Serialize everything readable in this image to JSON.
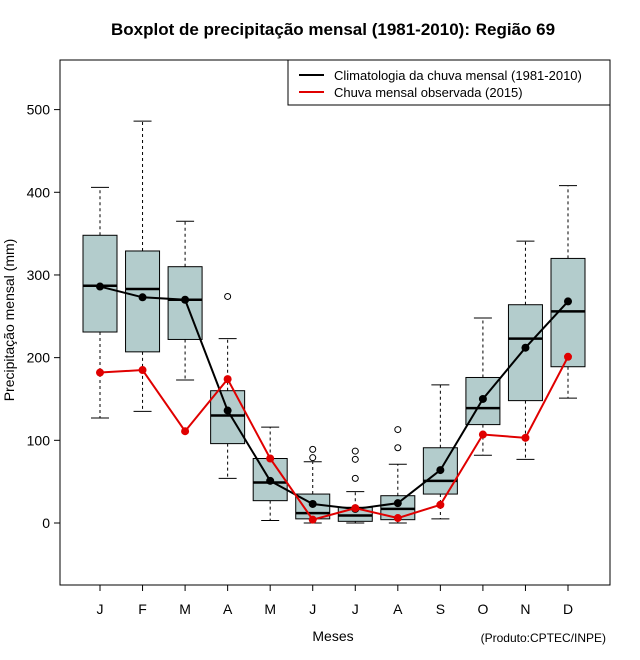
{
  "chart_data": {
    "type": "boxplot",
    "title": "Boxplot de precipitação mensal (1981-2010): Região 69",
    "xlabel": "Meses",
    "ylabel": "Precipitação mensal (mm)",
    "credit": "(Produto:CPTEC/INPE)",
    "ylim": [
      -75,
      560
    ],
    "yticks": [
      0,
      100,
      200,
      300,
      400,
      500
    ],
    "categories": [
      "J",
      "F",
      "M",
      "A",
      "M",
      "J",
      "J",
      "A",
      "S",
      "O",
      "N",
      "D"
    ],
    "boxes": [
      {
        "low": 127,
        "q1": 231,
        "median": 287,
        "q3": 348,
        "high": 406,
        "outliers": []
      },
      {
        "low": 135,
        "q1": 207,
        "median": 283,
        "q3": 329,
        "high": 486,
        "outliers": []
      },
      {
        "low": 173,
        "q1": 222,
        "median": 270,
        "q3": 310,
        "high": 365,
        "outliers": []
      },
      {
        "low": 54,
        "q1": 96,
        "median": 130,
        "q3": 160,
        "high": 223,
        "outliers": [
          274
        ]
      },
      {
        "low": 3,
        "q1": 27,
        "median": 49,
        "q3": 78,
        "high": 116,
        "outliers": []
      },
      {
        "low": 0,
        "q1": 5,
        "median": 12,
        "q3": 35,
        "high": 74,
        "outliers": [
          79,
          89
        ]
      },
      {
        "low": 0,
        "q1": 2,
        "median": 9,
        "q3": 19,
        "high": 38,
        "outliers": [
          54,
          77,
          87
        ]
      },
      {
        "low": 0,
        "q1": 4,
        "median": 17,
        "q3": 33,
        "high": 71,
        "outliers": [
          91,
          113
        ]
      },
      {
        "low": 5,
        "q1": 35,
        "median": 51,
        "q3": 91,
        "high": 167,
        "outliers": []
      },
      {
        "low": 82,
        "q1": 119,
        "median": 139,
        "q3": 176,
        "high": 248,
        "outliers": []
      },
      {
        "low": 77,
        "q1": 148,
        "median": 223,
        "q3": 264,
        "high": 341,
        "outliers": []
      },
      {
        "low": 151,
        "q1": 189,
        "median": 256,
        "q3": 320,
        "high": 408,
        "outliers": []
      }
    ],
    "series": [
      {
        "name": "Climatologia da chuva mensal (1981-2010)",
        "color": "#000000",
        "values": [
          286,
          273,
          270,
          136,
          51,
          23,
          17,
          24,
          64,
          150,
          212,
          268
        ]
      },
      {
        "name": "Chuva mensal observada (2015)",
        "color": "#e00000",
        "values": [
          182,
          185,
          111,
          174,
          78,
          4,
          18,
          6,
          22,
          107,
          103,
          201
        ]
      }
    ],
    "box_fill": "#b3cccc",
    "legend_position": "top-right"
  }
}
